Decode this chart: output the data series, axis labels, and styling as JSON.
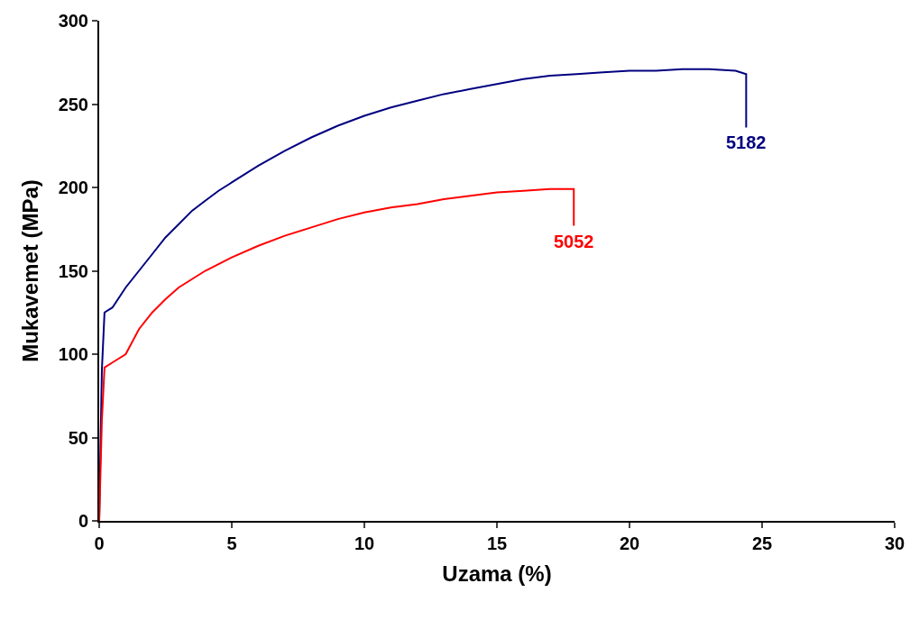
{
  "chart_data": {
    "type": "line",
    "xlabel": "Uzama (%)",
    "ylabel": "Mukavemet (MPa)",
    "xlim": [
      0,
      30
    ],
    "ylim": [
      0,
      300
    ],
    "xticks": [
      0,
      5,
      10,
      15,
      20,
      25,
      30
    ],
    "yticks": [
      0,
      50,
      100,
      150,
      200,
      250,
      300
    ],
    "legend": false,
    "marker": "none",
    "line_style": "solid",
    "series": [
      {
        "name": "5182",
        "color": "#000080",
        "x": [
          0,
          0.1,
          0.2,
          0.5,
          1,
          1.5,
          2,
          2.5,
          3,
          3.5,
          4,
          4.5,
          5,
          6,
          7,
          8,
          9,
          10,
          11,
          12,
          13,
          14,
          15,
          16,
          17,
          18,
          19,
          20,
          21,
          22,
          23,
          24,
          24.4,
          24.4
        ],
        "values": [
          0,
          90,
          125,
          128,
          140,
          150,
          160,
          170,
          178,
          186,
          192,
          198,
          203,
          213,
          222,
          230,
          237,
          243,
          248,
          252,
          256,
          259,
          262,
          265,
          267,
          268,
          269,
          270,
          270,
          271,
          271,
          270,
          268,
          236
        ]
      },
      {
        "name": "5052",
        "color": "#ff0000",
        "x": [
          0,
          0.1,
          0.2,
          0.5,
          1,
          1.5,
          2,
          2.5,
          3,
          3.5,
          4,
          4.5,
          5,
          6,
          7,
          8,
          9,
          10,
          11,
          12,
          13,
          14,
          15,
          16,
          17,
          17.9,
          17.9
        ],
        "values": [
          0,
          60,
          92,
          95,
          100,
          115,
          125,
          133,
          140,
          145,
          150,
          154,
          158,
          165,
          171,
          176,
          181,
          185,
          188,
          190,
          193,
          195,
          197,
          198,
          199,
          199,
          177
        ]
      }
    ]
  }
}
